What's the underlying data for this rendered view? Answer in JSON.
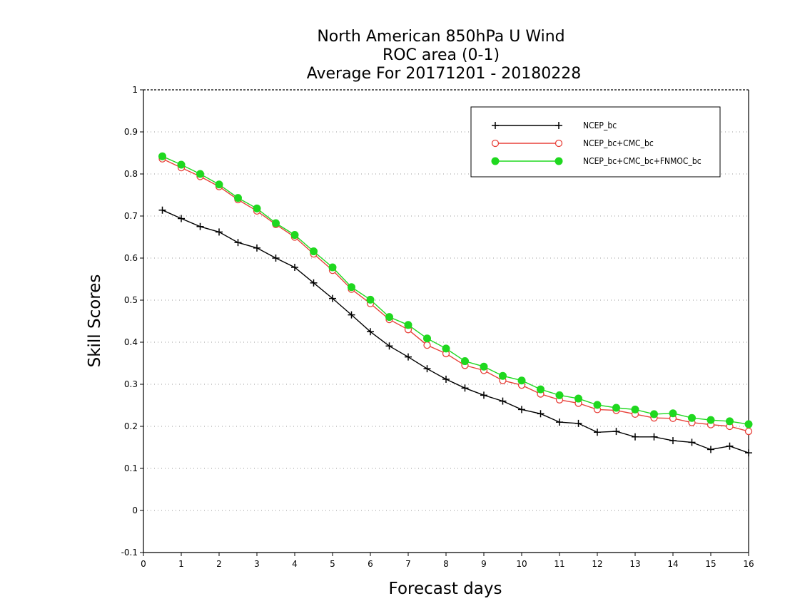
{
  "chart_data": {
    "type": "line",
    "title": [
      "North American 850hPa U Wind",
      "ROC area (0-1)",
      "Average For 20171201 - 20180228"
    ],
    "xlabel": "Forecast days",
    "ylabel": "Skill Scores",
    "xlim": [
      0,
      16
    ],
    "ylim": [
      -0.1,
      1
    ],
    "xticks": [
      "0",
      "1",
      "2",
      "3",
      "4",
      "5",
      "6",
      "7",
      "8",
      "9",
      "10",
      "11",
      "12",
      "13",
      "14",
      "15",
      "16"
    ],
    "yticks": [
      "-0.1",
      "0",
      "0.1",
      "0.2",
      "0.3",
      "0.4",
      "0.5",
      "0.6",
      "0.7",
      "0.8",
      "0.9",
      "1"
    ],
    "grid": "horizontal-dotted",
    "legend_position": "top-right",
    "x": [
      0.5,
      1,
      1.5,
      2,
      2.5,
      3,
      3.5,
      4,
      4.5,
      5,
      5.5,
      6,
      6.5,
      7,
      7.5,
      8,
      8.5,
      9,
      9.5,
      10,
      10.5,
      11,
      11.5,
      12,
      12.5,
      13,
      13.5,
      14,
      14.5,
      15,
      15.5,
      16
    ],
    "series": [
      {
        "name": "NCEP_bc",
        "color": "#000000",
        "marker": "plus",
        "values": [
          0.714,
          0.694,
          0.675,
          0.662,
          0.637,
          0.624,
          0.6,
          0.578,
          0.541,
          0.504,
          0.465,
          0.425,
          0.391,
          0.365,
          0.337,
          0.312,
          0.291,
          0.274,
          0.26,
          0.24,
          0.23,
          0.21,
          0.207,
          0.186,
          0.188,
          0.175,
          0.175,
          0.166,
          0.162,
          0.145,
          0.153,
          0.137
        ]
      },
      {
        "name": "NCEP_bc+CMC_bc",
        "color": "#e8413a",
        "marker": "open-circle",
        "values": [
          0.836,
          0.815,
          0.794,
          0.77,
          0.739,
          0.712,
          0.68,
          0.65,
          0.61,
          0.571,
          0.526,
          0.492,
          0.454,
          0.43,
          0.393,
          0.373,
          0.345,
          0.333,
          0.309,
          0.298,
          0.277,
          0.263,
          0.255,
          0.24,
          0.238,
          0.229,
          0.22,
          0.219,
          0.209,
          0.204,
          0.2,
          0.188
        ]
      },
      {
        "name": "NCEP_bc+CMC_bc+FNMOC_bc",
        "color": "#1fd81f",
        "marker": "filled-circle",
        "values": [
          0.842,
          0.822,
          0.8,
          0.775,
          0.743,
          0.718,
          0.683,
          0.655,
          0.616,
          0.578,
          0.531,
          0.501,
          0.46,
          0.441,
          0.409,
          0.385,
          0.355,
          0.342,
          0.32,
          0.309,
          0.288,
          0.274,
          0.266,
          0.251,
          0.244,
          0.24,
          0.229,
          0.231,
          0.22,
          0.215,
          0.212,
          0.205
        ]
      }
    ]
  }
}
